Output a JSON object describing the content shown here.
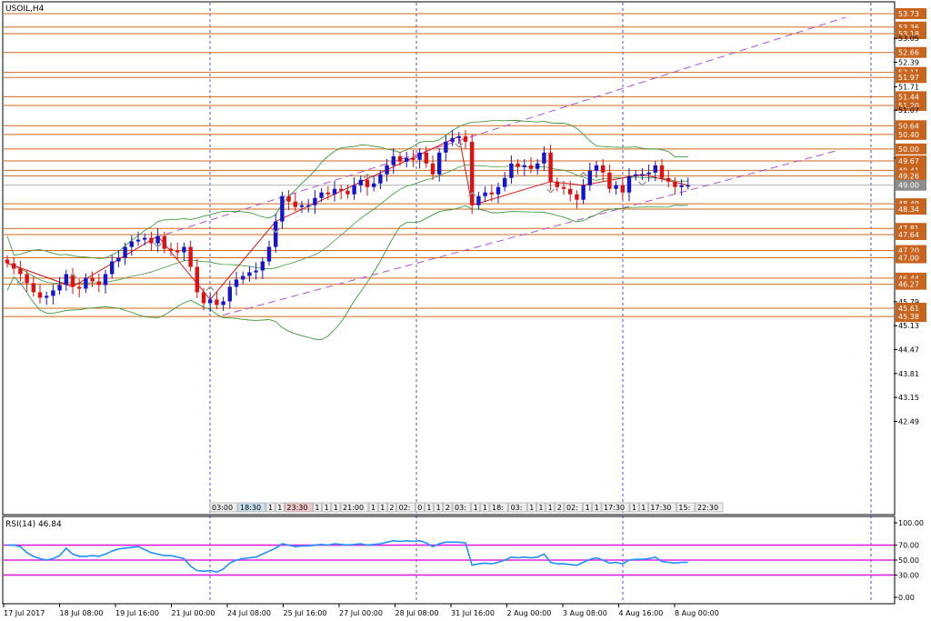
{
  "window_title": "USOIL,H4",
  "indicator_label": "RSI(14) 46.84",
  "colors": {
    "bull": "#1515d0",
    "bear": "#e01010",
    "level": "#d2691e",
    "channel": "#b050d8",
    "bands": "#3c9a3c",
    "zigzag": "#e01010",
    "rsi": "#1e90ff",
    "rsi_levels": "#e020e0",
    "price_tag": "#c8641e",
    "current_tag": "#8c8c8c"
  },
  "chart_data": [
    {
      "type": "candlestick",
      "title": "USOIL,H4",
      "ylim": [
        42.0,
        53.95
      ],
      "y_ticks": [
        "53.73",
        "53.36",
        "53.18",
        "53.05",
        "52.66",
        "52.39",
        "52.11",
        "51.97",
        "51.71",
        "51.44",
        "51.20",
        "51.07",
        "50.64",
        "50.40",
        "50.00",
        "49.75",
        "49.67",
        "49.41",
        "49.26",
        "49.00",
        "48.49",
        "48.34",
        "47.81",
        "47.64",
        "47.20",
        "47.00",
        "46.44",
        "46.27",
        "45.79",
        "45.61",
        "45.38",
        "45.13",
        "44.47",
        "43.81",
        "43.15",
        "42.49"
      ],
      "horizontal_levels": [
        53.73,
        53.36,
        53.18,
        52.66,
        52.11,
        51.97,
        51.44,
        51.2,
        50.64,
        50.4,
        50.0,
        49.67,
        49.41,
        49.26,
        48.49,
        48.34,
        47.81,
        47.64,
        47.2,
        47.0,
        46.44,
        46.27,
        45.61,
        45.38
      ],
      "current_price": 49.0,
      "x_labels": [
        "17 Jul 2017",
        "18 Jul 08:00",
        "19 Jul 16:00",
        "21 Jul 00:00",
        "24 Jul 08:00",
        "25 Jul 16:00",
        "27 Jul 00:00",
        "28 Jul 08:00",
        "31 Jul 16:00",
        "2 Aug 00:00",
        "3 Aug 08:00",
        "4 Aug 16:00",
        "8 Aug 00:00"
      ],
      "time_markers": [
        "03:00",
        "18:30",
        "1",
        "1",
        "23:30",
        "1",
        "1",
        "1",
        "21:00",
        "1",
        "1",
        "2",
        "02:",
        "0",
        "1",
        "1",
        "2",
        "03:",
        "1",
        "1",
        "18:",
        "03:",
        "1",
        "1",
        "1",
        "2",
        "02:",
        "1",
        "1",
        "17:30",
        "1",
        "1",
        "17:30",
        "15:",
        "22:30"
      ],
      "series": [
        {
          "name": "Close",
          "values": [
            46.85,
            46.7,
            46.55,
            46.3,
            46.05,
            45.9,
            45.95,
            46.1,
            46.25,
            46.55,
            46.2,
            46.15,
            46.45,
            46.35,
            46.25,
            46.55,
            46.9,
            47.0,
            47.3,
            47.45,
            47.5,
            47.55,
            47.4,
            47.6,
            47.25,
            47.2,
            47.15,
            47.3,
            46.75,
            46.05,
            45.75,
            45.85,
            45.7,
            45.8,
            46.2,
            46.4,
            46.5,
            46.6,
            46.65,
            46.9,
            47.3,
            48.0,
            48.7,
            48.55,
            48.4,
            48.45,
            48.45,
            48.65,
            48.8,
            48.75,
            48.9,
            48.85,
            48.75,
            49.0,
            49.15,
            48.95,
            49.05,
            49.3,
            49.55,
            49.8,
            49.65,
            49.75,
            49.7,
            49.9,
            49.6,
            49.3,
            49.9,
            50.2,
            50.3,
            50.35,
            50.2,
            48.45,
            48.7,
            48.8,
            48.75,
            48.95,
            49.2,
            49.6,
            49.5,
            49.55,
            49.45,
            49.6,
            49.9,
            49.1,
            48.95,
            48.9,
            48.75,
            48.6,
            49.0,
            49.4,
            49.55,
            49.35,
            48.9,
            49.0,
            48.8,
            49.25,
            49.3,
            49.3,
            49.35,
            49.55,
            49.2,
            49.1,
            48.95,
            49.0,
            49.0
          ]
        }
      ],
      "annotations": [
        "ascending price channel",
        "Bollinger bands",
        "zigzag",
        "fractals"
      ]
    },
    {
      "type": "line",
      "title": "RSI(14) 46.84",
      "ylim": [
        0,
        100
      ],
      "y_ticks": [
        "100.00",
        "70.00",
        "50.00",
        "30.00",
        "0.00"
      ],
      "levels": [
        70,
        50,
        30
      ],
      "series": [
        {
          "name": "RSI(14)",
          "values": [
            70,
            70,
            68,
            60,
            55,
            52,
            50,
            52,
            56,
            66,
            58,
            55,
            55,
            56,
            55,
            58,
            62,
            65,
            66,
            67,
            68,
            64,
            60,
            58,
            56,
            56,
            54,
            52,
            42,
            36,
            35,
            36,
            34,
            38,
            46,
            50,
            52,
            53,
            54,
            58,
            62,
            66,
            72,
            70,
            68,
            69,
            69,
            70,
            71,
            70,
            72,
            71,
            70,
            71,
            72,
            70,
            71,
            72,
            74,
            76,
            75,
            76,
            75,
            76,
            73,
            68,
            72,
            74,
            74,
            74,
            73,
            43,
            45,
            46,
            45,
            47,
            50,
            54,
            53,
            54,
            53,
            54,
            58,
            47,
            45,
            45,
            44,
            43,
            47,
            51,
            53,
            50,
            46,
            47,
            45,
            50,
            51,
            51,
            52,
            54,
            48,
            47,
            46,
            47,
            47
          ]
        }
      ]
    }
  ]
}
